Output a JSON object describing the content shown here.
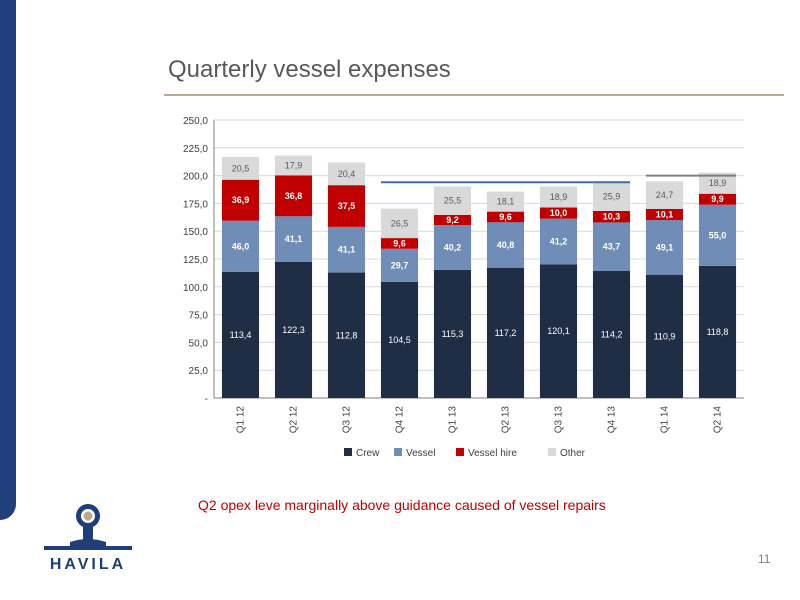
{
  "slide": {
    "title": "Quarterly vessel expenses",
    "note": "Q2 opex leve marginally above guidance caused of vessel repairs",
    "page_number": "11",
    "logo_text": "HAVILA"
  },
  "colors": {
    "brand_blue": "#1f3f7a",
    "title_rule": "#b7ab8c",
    "note_red": "#c00000"
  },
  "chart_data": {
    "type": "bar",
    "stacked": true,
    "categories": [
      "Q1 12",
      "Q2 12",
      "Q3 12",
      "Q4 12",
      "Q1 13",
      "Q2 13",
      "Q3 13",
      "Q4 13",
      "Q1 14",
      "Q2 14"
    ],
    "series": [
      {
        "name": "Crew",
        "color": "#1f2d45",
        "values": [
          113.4,
          122.3,
          112.8,
          104.5,
          115.3,
          117.2,
          120.1,
          114.2,
          110.9,
          118.8
        ],
        "labels": [
          "113,4",
          "122,3",
          "112,8",
          "104,5",
          "115,3",
          "117,2",
          "120,1",
          "114,2",
          "110,9",
          "118,8"
        ]
      },
      {
        "name": "Vessel",
        "color": "#6f8db6",
        "values": [
          46.0,
          41.1,
          41.1,
          29.7,
          40.2,
          40.8,
          41.2,
          43.7,
          49.1,
          55.0
        ],
        "labels": [
          "46,0",
          "41,1",
          "41,1",
          "29,7",
          "40,2",
          "40,8",
          "41,2",
          "43,7",
          "49,1",
          "55,0"
        ]
      },
      {
        "name": "Vessel hire",
        "color": "#c00000",
        "values": [
          36.9,
          36.8,
          37.5,
          9.6,
          9.2,
          9.6,
          10.0,
          10.3,
          10.1,
          9.9
        ],
        "labels": [
          "36,9",
          "36,8",
          "37,5",
          "9,6",
          "9,2",
          "9,6",
          "10,0",
          "10,3",
          "10,1",
          "9,9"
        ]
      },
      {
        "name": "Other",
        "color": "#d9d9d9",
        "values": [
          20.5,
          17.9,
          20.4,
          26.5,
          25.5,
          18.1,
          18.9,
          25.9,
          24.7,
          18.9
        ],
        "labels": [
          "20,5",
          "17,9",
          "20,4",
          "26,5",
          "25,5",
          "18,1",
          "18,9",
          "25,9",
          "24,7",
          "18,9"
        ]
      }
    ],
    "ylim": [
      0,
      250
    ],
    "yticks": [
      "-",
      "25,0",
      "50,0",
      "75,0",
      "100,0",
      "125,0",
      "150,0",
      "175,0",
      "200,0",
      "225,0",
      "250,0"
    ],
    "grid": true,
    "legend": "bottom",
    "reference_lines": [
      {
        "from": "Q4 12",
        "to": "Q4 13",
        "value": 194,
        "color": "#4a6aa5"
      },
      {
        "from": "Q1 14",
        "to": "Q2 14",
        "value": 200,
        "color": "#7f7f7f"
      }
    ]
  }
}
